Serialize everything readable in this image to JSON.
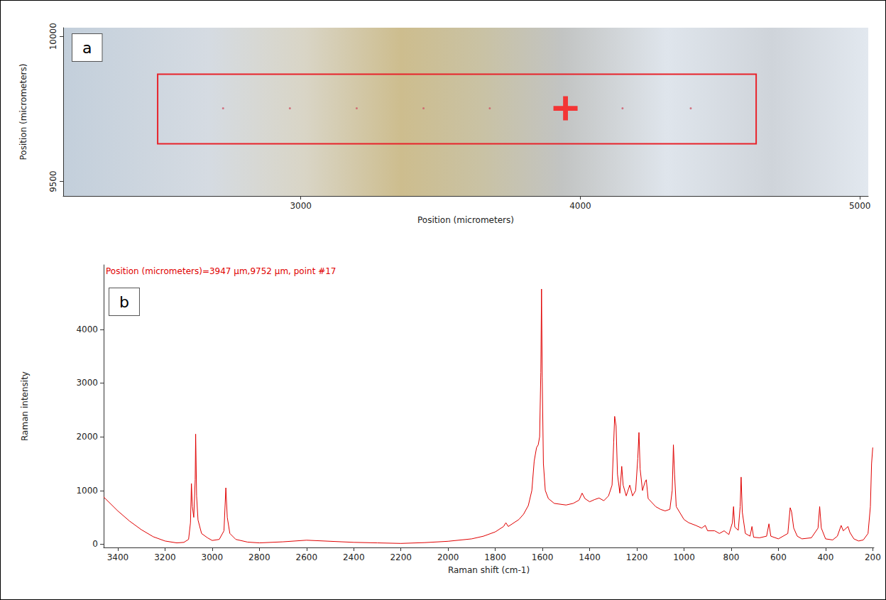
{
  "chart_data": [
    {
      "type": "scatter",
      "panel_label": "a",
      "x_label": "Position (micrometers)",
      "y_label": "Position (micrometers)",
      "xlim": [
        2150,
        5030
      ],
      "xticks": [
        3000,
        4000,
        5000
      ],
      "ylim": [
        9450,
        10030
      ],
      "yticks": [
        9500,
        10000
      ],
      "grid": false,
      "series": [
        {
          "x": [
            2722,
            2961,
            3200,
            3439,
            3676,
            4151,
            4395
          ],
          "values": [
            9752,
            9752,
            9752,
            9752,
            9752,
            9752,
            9752
          ],
          "color": "#d05a6a",
          "marker": "dot"
        }
      ],
      "region": {
        "x": [
          2488,
          4629
        ],
        "y": [
          9630,
          9870
        ],
        "color": "#e8222a"
      },
      "selected": {
        "x": 3947,
        "y": 9752,
        "color": "#ff1010",
        "marker": "cross"
      }
    },
    {
      "type": "line",
      "panel_label": "b",
      "annotation": "Position (micrometers)=3947 µm,9752 µm, point #17",
      "x_label": "Raman shift (cm-1)",
      "y_label": "Raman intensity",
      "xlim": [
        3460,
        195
      ],
      "xticks": [
        3400,
        3200,
        3000,
        2800,
        2600,
        2400,
        2200,
        2000,
        1800,
        1600,
        1400,
        1200,
        1000,
        800,
        600,
        400,
        200
      ],
      "ylim": [
        -60,
        5200
      ],
      "yticks": [
        0,
        1000,
        2000,
        3000,
        4000
      ],
      "grid": false,
      "color": "#e00000",
      "x": [
        3460,
        3400,
        3350,
        3300,
        3250,
        3200,
        3150,
        3120,
        3100,
        3092,
        3088,
        3084,
        3078,
        3072,
        3070,
        3066,
        3060,
        3045,
        3020,
        3000,
        2970,
        2950,
        2942,
        2936,
        2925,
        2900,
        2850,
        2800,
        2700,
        2600,
        2500,
        2400,
        2300,
        2200,
        2100,
        2000,
        1900,
        1850,
        1800,
        1765,
        1755,
        1745,
        1700,
        1680,
        1660,
        1645,
        1635,
        1625,
        1618,
        1612,
        1607,
        1604,
        1601,
        1596,
        1588,
        1575,
        1550,
        1500,
        1470,
        1445,
        1432,
        1420,
        1400,
        1380,
        1360,
        1340,
        1320,
        1305,
        1298,
        1294,
        1288,
        1282,
        1272,
        1264,
        1258,
        1245,
        1230,
        1218,
        1205,
        1196,
        1191,
        1186,
        1176,
        1166,
        1160,
        1152,
        1120,
        1100,
        1080,
        1060,
        1050,
        1045,
        1040,
        1033,
        1000,
        980,
        950,
        925,
        910,
        900,
        870,
        850,
        830,
        810,
        795,
        790,
        785,
        770,
        762,
        758,
        753,
        740,
        720,
        712,
        705,
        680,
        650,
        640,
        632,
        600,
        560,
        550,
        544,
        535,
        520,
        500,
        460,
        432,
        425,
        418,
        400,
        370,
        350,
        334,
        325,
        305,
        297,
        280,
        260,
        240,
        220,
        210,
        205,
        200
      ],
      "values": [
        880,
        620,
        430,
        270,
        140,
        60,
        25,
        35,
        90,
        400,
        1130,
        700,
        500,
        1200,
        2050,
        900,
        450,
        200,
        120,
        70,
        90,
        250,
        1050,
        500,
        200,
        90,
        40,
        25,
        45,
        75,
        55,
        35,
        25,
        15,
        30,
        55,
        100,
        150,
        230,
        330,
        400,
        330,
        460,
        560,
        720,
        1000,
        1550,
        1800,
        1850,
        2000,
        3200,
        4750,
        3100,
        1500,
        1000,
        850,
        760,
        730,
        760,
        820,
        950,
        850,
        790,
        830,
        860,
        810,
        900,
        1100,
        1900,
        2380,
        2200,
        1300,
        950,
        1450,
        1100,
        900,
        1100,
        900,
        1000,
        1600,
        2080,
        1400,
        1000,
        1150,
        1200,
        850,
        700,
        650,
        620,
        650,
        1000,
        1850,
        1300,
        700,
        460,
        400,
        350,
        300,
        350,
        250,
        250,
        200,
        250,
        180,
        400,
        700,
        320,
        260,
        700,
        1250,
        600,
        200,
        150,
        330,
        130,
        120,
        150,
        380,
        150,
        100,
        200,
        680,
        600,
        300,
        150,
        100,
        120,
        300,
        700,
        300,
        100,
        80,
        150,
        350,
        250,
        330,
        220,
        100,
        60,
        80,
        200,
        700,
        1500,
        1800
      ]
    }
  ]
}
